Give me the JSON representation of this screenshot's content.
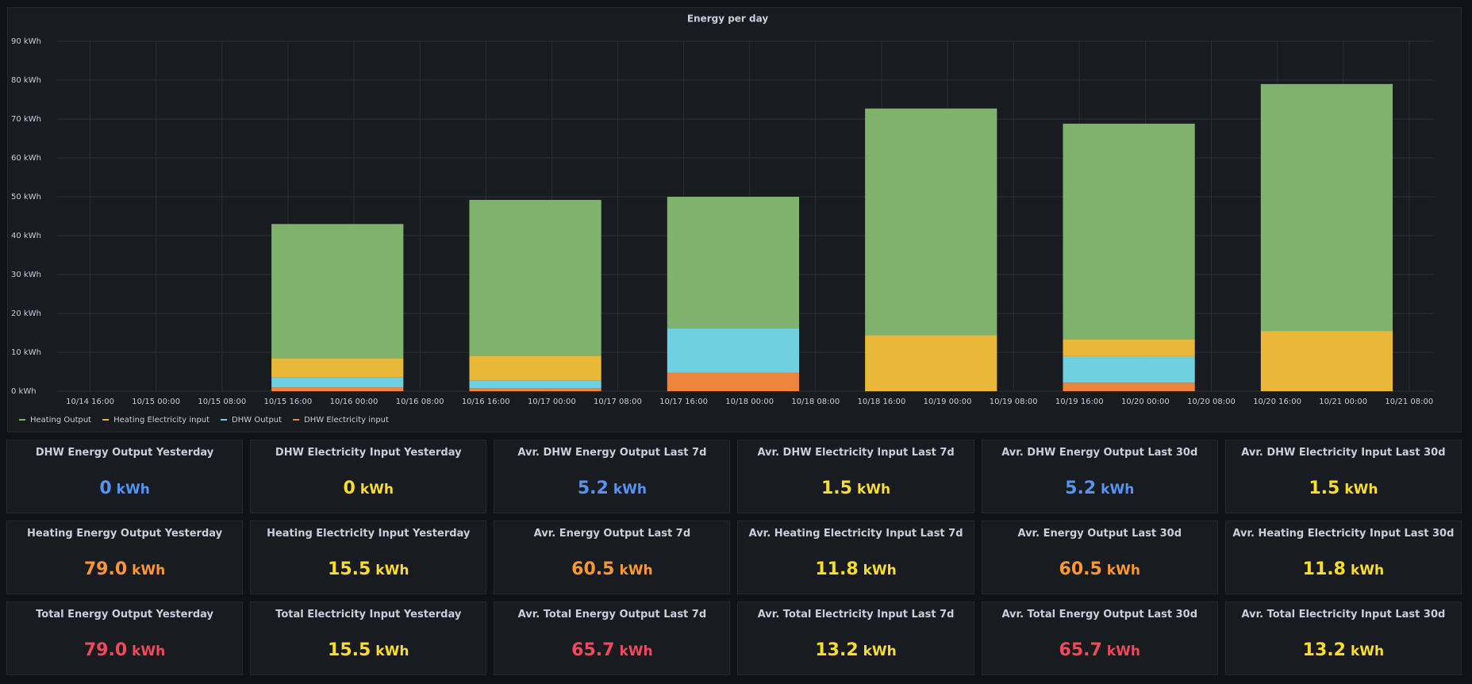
{
  "chart_data": {
    "type": "bar",
    "stacked": true,
    "title": "Energy per day",
    "x": [
      "10/15 22:00",
      "10/16 22:00",
      "10/17 22:00",
      "10/18 22:00",
      "10/19 22:00",
      "10/20 22:00"
    ],
    "xlim": [
      "10/14 12:00",
      "10/21 11:00"
    ],
    "xticks": [
      "10/14 16:00",
      "10/15 00:00",
      "10/15 08:00",
      "10/15 16:00",
      "10/16 00:00",
      "10/16 08:00",
      "10/16 16:00",
      "10/17 00:00",
      "10/17 08:00",
      "10/17 16:00",
      "10/18 00:00",
      "10/18 08:00",
      "10/18 16:00",
      "10/19 00:00",
      "10/19 08:00",
      "10/19 16:00",
      "10/20 00:00",
      "10/20 08:00",
      "10/20 16:00",
      "10/21 00:00",
      "10/21 08:00"
    ],
    "ylim": [
      0,
      90
    ],
    "yticks": [
      {
        "value": 0,
        "label": "0 kWh"
      },
      {
        "value": 10,
        "label": "10 kWh"
      },
      {
        "value": 20,
        "label": "20 kWh"
      },
      {
        "value": 30,
        "label": "30 kWh"
      },
      {
        "value": 40,
        "label": "40 kWh"
      },
      {
        "value": 50,
        "label": "50 kWh"
      },
      {
        "value": 60,
        "label": "60 kWh"
      },
      {
        "value": 70,
        "label": "70 kWh"
      },
      {
        "value": 80,
        "label": "80 kWh"
      },
      {
        "value": 90,
        "label": "90 kWh"
      }
    ],
    "grid": true,
    "legend": "bottom-left",
    "series": [
      {
        "name": "Heating Output",
        "color": "#7eb26d",
        "values": [
          34.5,
          40.1,
          33.8,
          58.3,
          55.4,
          63.5
        ]
      },
      {
        "name": "Heating Electricity input",
        "color": "#eab839",
        "values": [
          5,
          6.3,
          0,
          14.4,
          4.4,
          15.5
        ]
      },
      {
        "name": "DHW Output",
        "color": "#6ed0e0",
        "values": [
          2.5,
          2,
          11.4,
          0,
          6.8,
          0
        ]
      },
      {
        "name": "DHW Electricity input",
        "color": "#ef843c",
        "values": [
          1,
          0.8,
          4.8,
          0,
          2.2,
          0
        ]
      }
    ]
  },
  "stats": {
    "rows": [
      [
        {
          "title": "DHW Energy Output Yesterday",
          "value": "0",
          "unit": "kWh",
          "color": "#5794f2"
        },
        {
          "title": "DHW Electricity Input Yesterday",
          "value": "0",
          "unit": "kWh",
          "color": "#fade2a"
        },
        {
          "title": "Avr. DHW Energy Output Last 7d",
          "value": "5.2",
          "unit": "kWh",
          "color": "#5794f2"
        },
        {
          "title": "Avr. DHW Electricity Input Last 7d",
          "value": "1.5",
          "unit": "kWh",
          "color": "#fade2a"
        },
        {
          "title": "Avr. DHW Energy Output Last 30d",
          "value": "5.2",
          "unit": "kWh",
          "color": "#5794f2"
        },
        {
          "title": "Avr. DHW Electricity Input Last 30d",
          "value": "1.5",
          "unit": "kWh",
          "color": "#fade2a"
        }
      ],
      [
        {
          "title": "Heating Energy Output Yesterday",
          "value": "79.0",
          "unit": "kWh",
          "color": "#ff9830"
        },
        {
          "title": "Heating Electricity Input Yesterday",
          "value": "15.5",
          "unit": "kWh",
          "color": "#fade2a"
        },
        {
          "title": "Avr. Energy Output Last 7d",
          "value": "60.5",
          "unit": "kWh",
          "color": "#ff9830"
        },
        {
          "title": "Avr. Heating Electricity Input Last 7d",
          "value": "11.8",
          "unit": "kWh",
          "color": "#fade2a"
        },
        {
          "title": "Avr. Energy Output Last 30d",
          "value": "60.5",
          "unit": "kWh",
          "color": "#ff9830"
        },
        {
          "title": "Avr. Heating Electricity Input Last 30d",
          "value": "11.8",
          "unit": "kWh",
          "color": "#fade2a"
        }
      ],
      [
        {
          "title": "Total Energy Output Yesterday",
          "value": "79.0",
          "unit": "kWh",
          "color": "#f2495c"
        },
        {
          "title": "Total Electricity Input Yesterday",
          "value": "15.5",
          "unit": "kWh",
          "color": "#fade2a"
        },
        {
          "title": "Avr. Total Energy Output Last 7d",
          "value": "65.7",
          "unit": "kWh",
          "color": "#f2495c"
        },
        {
          "title": "Avr. Total Electricity Input Last 7d",
          "value": "13.2",
          "unit": "kWh",
          "color": "#fade2a"
        },
        {
          "title": "Avr. Total Energy Output Last 30d",
          "value": "65.7",
          "unit": "kWh",
          "color": "#f2495c"
        },
        {
          "title": "Avr. Total Electricity Input Last 30d",
          "value": "13.2",
          "unit": "kWh",
          "color": "#fade2a"
        }
      ]
    ]
  }
}
